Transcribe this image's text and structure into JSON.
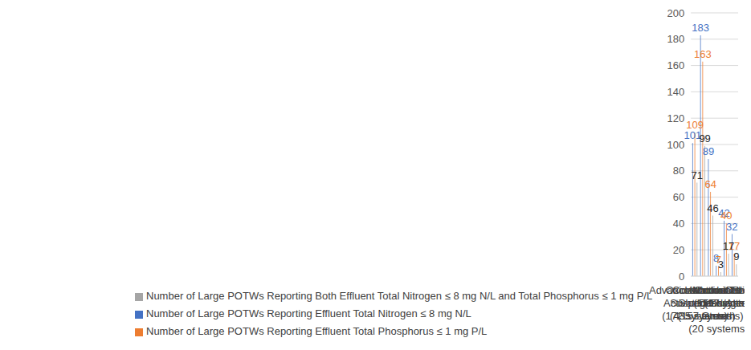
{
  "chart_data": {
    "type": "bar",
    "categories": [
      "Advanced Activated\nSludge\n(172 systems)",
      "Conventional\nActivated Sludge\n(435 systems)",
      "Oxidation or Orbital\nDitch\n(157 systems)",
      "Combined\nSuspended/Attached\nGrowth\n(20 systems)",
      "Attached Growth\n(151 systems)",
      "Natural Treatment\n(97 systems)"
    ],
    "series": [
      {
        "name": "Number of Large POTWs Reporting Effluent Total Nitrogen ≤ 8 mg N/L",
        "color": "#4472c4",
        "values": [
          101,
          183,
          89,
          8,
          42,
          32
        ]
      },
      {
        "name": "Number of Large POTWs Reporting Effluent Total Phosphorus ≤ 1 mg P/L",
        "color": "#ed7d31",
        "values": [
          109,
          163,
          64,
          7,
          40,
          17
        ]
      },
      {
        "name": "Number of Large POTWs Reporting Both Effluent Total Nitrogen ≤ 8 mg N/L and Total Phosphorus ≤ 1 mg P/L",
        "color": "#a5a5a5",
        "values": [
          71,
          99,
          46,
          3,
          17,
          9
        ]
      }
    ],
    "ylim": [
      0,
      200
    ],
    "yticks": [
      0,
      20,
      40,
      60,
      80,
      100,
      120,
      140,
      160,
      180,
      200
    ],
    "grid": true,
    "data_labels": true,
    "legend": "bottom-left"
  }
}
